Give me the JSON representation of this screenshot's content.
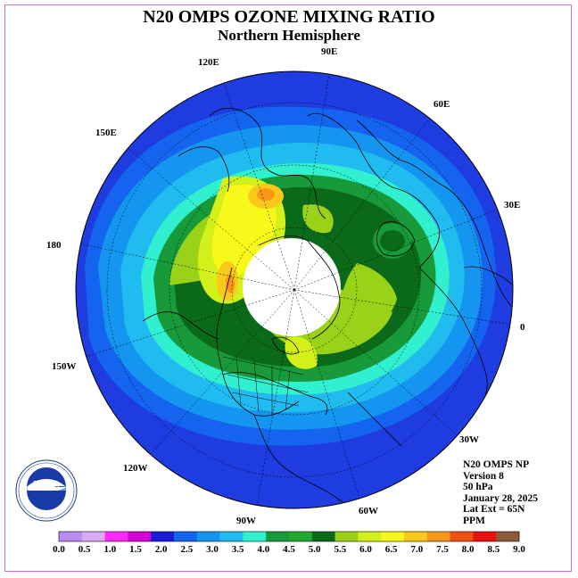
{
  "title": "N20 OMPS OZONE MIXING RATIO",
  "subtitle": "Northern Hemisphere",
  "longitude_labels": [
    "90E",
    "60E",
    "30E",
    "0",
    "30W",
    "60W",
    "90W",
    "120W",
    "150W",
    "180",
    "150E",
    "120E"
  ],
  "info": {
    "product": "N20 OMPS NP",
    "version": "Version 8",
    "level": "50 hPa",
    "date": "January 28, 2025",
    "lat_ext": "Lat Ext = 65N",
    "units": "PPM"
  },
  "colorbar": {
    "ticks": [
      "0.0",
      "0.5",
      "1.0",
      "1.5",
      "2.0",
      "2.5",
      "3.0",
      "3.5",
      "4.0",
      "4.5",
      "5.0",
      "5.5",
      "6.0",
      "6.5",
      "7.0",
      "7.5",
      "8.0",
      "8.5",
      "9.0"
    ],
    "colors": [
      "#b98af0",
      "#dcaaf5",
      "#ff2aff",
      "#d800d8",
      "#1a1ad8",
      "#1464f0",
      "#1496f0",
      "#20bcf0",
      "#30f0d0",
      "#189a3a",
      "#20a830",
      "#0a6a1a",
      "#9ad21a",
      "#d4f01a",
      "#f8f81a",
      "#f8c81a",
      "#f8961a",
      "#f05010",
      "#e81010",
      "#8b5a3a"
    ]
  },
  "colors": {
    "ozone_low": "#1e3ce0",
    "ozone_mid": "#20bcf0",
    "ozone_green": "#189a3a",
    "ozone_high": "#f8c81a",
    "missing_data": "#ffffff",
    "frame": "#d46ad4"
  },
  "logo": {
    "text": "NOAA",
    "ring_text": "NATIONAL OCEANIC AND ATMOSPHERIC ADMINISTRATION · U.S. DEPARTMENT OF COMMERCE"
  }
}
